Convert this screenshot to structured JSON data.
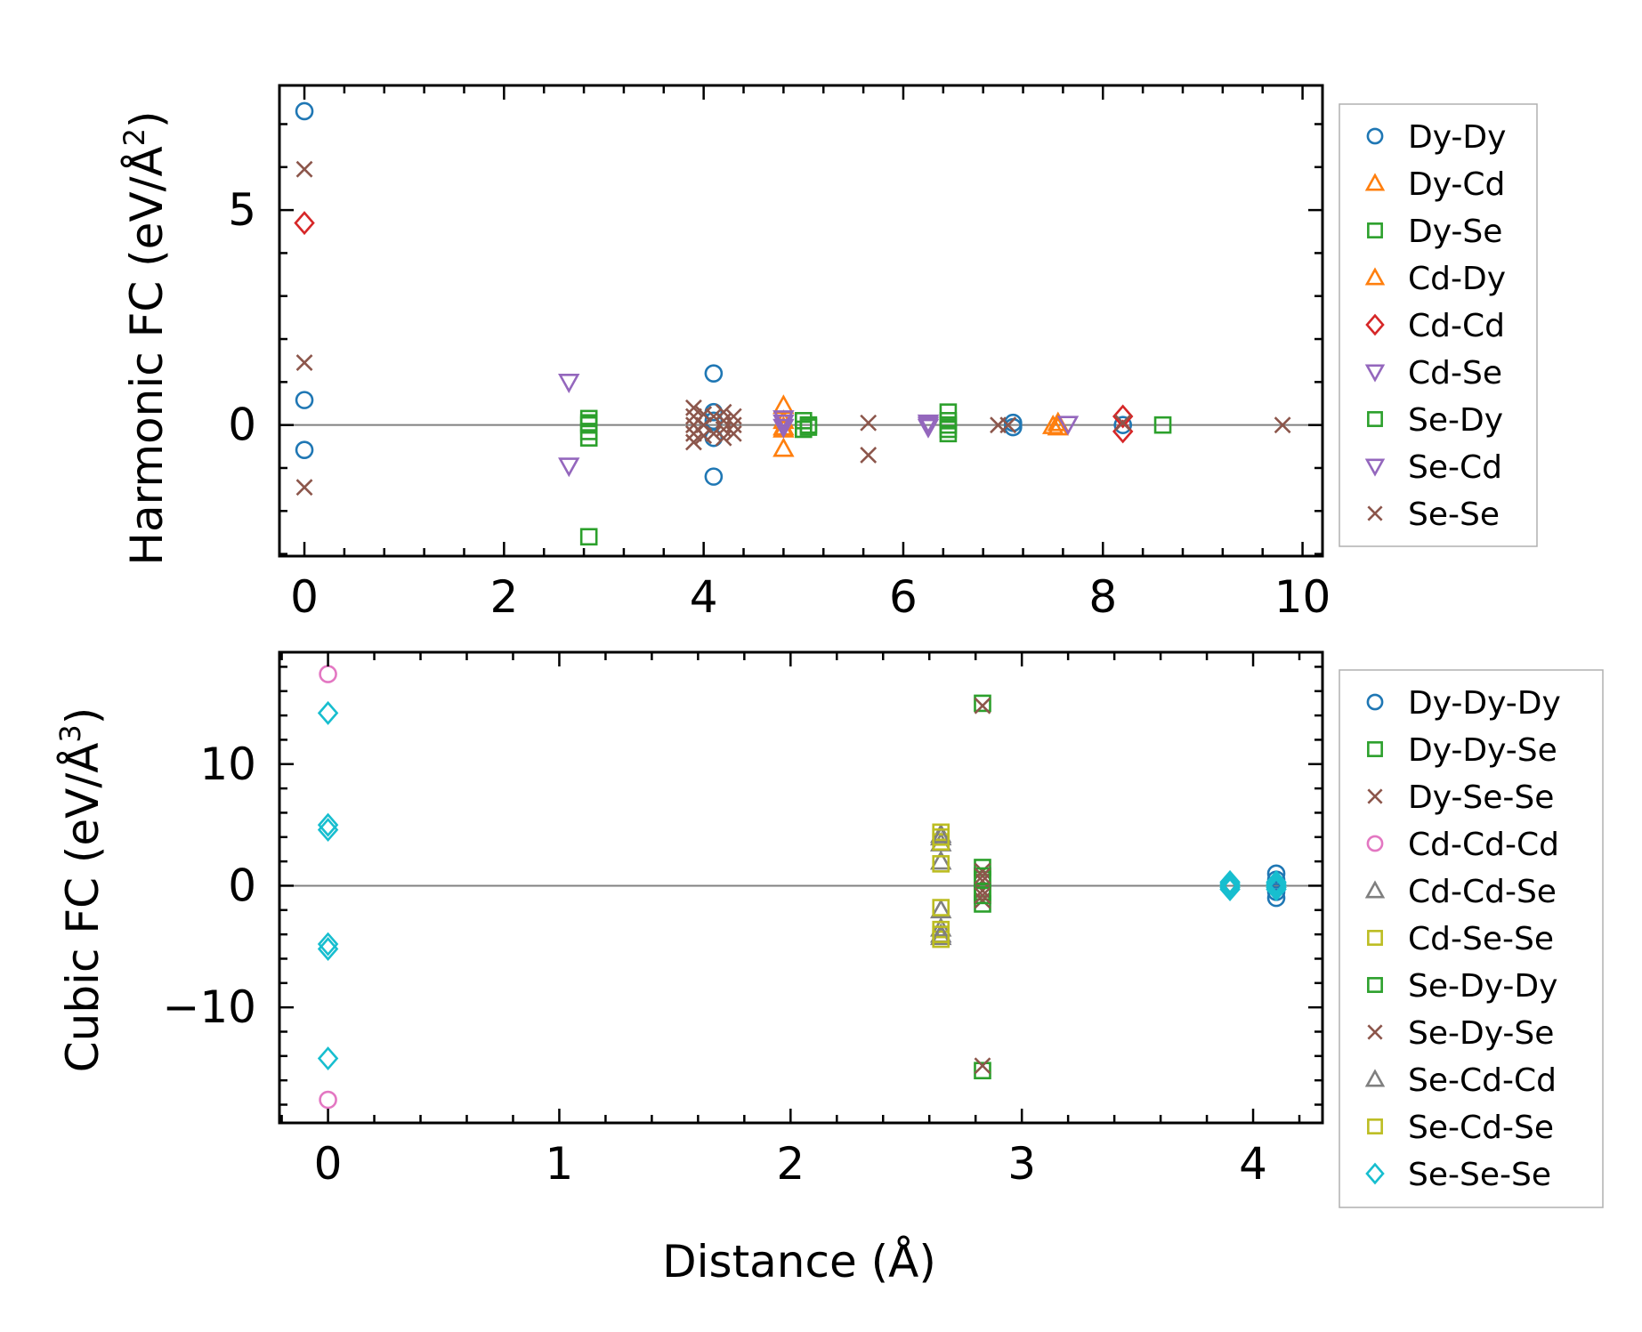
{
  "chart_data": [
    {
      "type": "scatter",
      "ylabel_main": "Harmonic FC (eV/Å",
      "ylabel_sup": "2",
      "ylabel_close": ")",
      "xlabel": "",
      "xlim": [
        -0.25,
        10.2
      ],
      "ylim": [
        -3.05,
        7.9
      ],
      "xticks": [
        0,
        2,
        4,
        6,
        8,
        10
      ],
      "xtick_labels": [
        "0",
        "2",
        "4",
        "6",
        "8",
        "10"
      ],
      "yticks": [
        0,
        5
      ],
      "ytick_labels": [
        "0",
        "5"
      ],
      "legend": [
        "Dy-Dy",
        "Dy-Cd",
        "Dy-Se",
        "Cd-Dy",
        "Cd-Cd",
        "Cd-Se",
        "Se-Dy",
        "Se-Cd",
        "Se-Se"
      ],
      "series": [
        {
          "name": "Dy-Dy",
          "marker": "circle",
          "color": "#1f77b4",
          "points": [
            [
              0,
              7.3
            ],
            [
              0,
              0.58
            ],
            [
              0,
              -0.58
            ],
            [
              4.1,
              1.2
            ],
            [
              4.1,
              -1.2
            ],
            [
              4.1,
              0.3
            ],
            [
              4.1,
              -0.3
            ],
            [
              4.1,
              0.1
            ],
            [
              7.1,
              0.05
            ],
            [
              7.1,
              -0.05
            ],
            [
              8.2,
              0
            ]
          ]
        },
        {
          "name": "Dy-Cd",
          "marker": "triangle-up",
          "color": "#ff7f0e",
          "points": [
            [
              4.8,
              0.45
            ],
            [
              4.8,
              -0.55
            ],
            [
              4.8,
              0.1
            ],
            [
              4.8,
              -0.1
            ],
            [
              7.55,
              0.05
            ],
            [
              7.55,
              -0.05
            ]
          ]
        },
        {
          "name": "Dy-Se",
          "marker": "square",
          "color": "#2ca02c",
          "points": [
            [
              2.85,
              -2.6
            ],
            [
              2.85,
              0.15
            ],
            [
              2.85,
              0
            ],
            [
              2.85,
              -0.15
            ],
            [
              2.85,
              -0.3
            ],
            [
              5.0,
              0.1
            ],
            [
              5.0,
              -0.1
            ],
            [
              5.05,
              0
            ],
            [
              6.45,
              0.3
            ],
            [
              6.45,
              0.1
            ],
            [
              6.45,
              -0.1
            ],
            [
              6.45,
              -0.2
            ],
            [
              8.6,
              0
            ]
          ]
        },
        {
          "name": "Cd-Dy",
          "marker": "triangle-up",
          "color": "#ff7f0e",
          "points": [
            [
              4.8,
              -0.05
            ],
            [
              7.5,
              -0.02
            ]
          ]
        },
        {
          "name": "Cd-Cd",
          "marker": "diamond",
          "color": "#d62728",
          "points": [
            [
              0,
              4.7
            ],
            [
              8.2,
              0.2
            ],
            [
              8.2,
              -0.15
            ]
          ]
        },
        {
          "name": "Cd-Se",
          "marker": "triangle-down",
          "color": "#9467bd",
          "points": [
            [
              2.65,
              1.0
            ],
            [
              2.65,
              -0.95
            ],
            [
              4.8,
              0.15
            ],
            [
              4.8,
              -0.05
            ],
            [
              6.25,
              0.05
            ],
            [
              6.25,
              -0.05
            ]
          ]
        },
        {
          "name": "Se-Dy",
          "marker": "square",
          "color": "#2ca02c",
          "points": [
            [
              2.85,
              0.05
            ],
            [
              5.05,
              -0.05
            ],
            [
              6.45,
              0
            ]
          ]
        },
        {
          "name": "Se-Cd",
          "marker": "triangle-down",
          "color": "#9467bd",
          "points": [
            [
              4.8,
              0.05
            ],
            [
              6.25,
              0
            ],
            [
              7.65,
              0.02
            ]
          ]
        },
        {
          "name": "Se-Se",
          "marker": "x",
          "color": "#8c564b",
          "points": [
            [
              0,
              5.95
            ],
            [
              0,
              1.45
            ],
            [
              0,
              -1.45
            ],
            [
              3.9,
              0.4
            ],
            [
              3.9,
              0.2
            ],
            [
              3.9,
              0
            ],
            [
              3.9,
              -0.2
            ],
            [
              3.9,
              -0.4
            ],
            [
              4.0,
              0.25
            ],
            [
              4.0,
              0
            ],
            [
              4.0,
              -0.25
            ],
            [
              4.1,
              0.2
            ],
            [
              4.1,
              -0.2
            ],
            [
              4.2,
              0.3
            ],
            [
              4.2,
              0.1
            ],
            [
              4.2,
              -0.1
            ],
            [
              4.2,
              -0.3
            ],
            [
              4.3,
              0.2
            ],
            [
              4.3,
              0
            ],
            [
              4.3,
              -0.2
            ],
            [
              5.65,
              0.05
            ],
            [
              5.65,
              -0.7
            ],
            [
              6.95,
              0
            ],
            [
              7.05,
              0
            ],
            [
              8.2,
              0.05
            ],
            [
              9.8,
              0
            ]
          ]
        }
      ]
    },
    {
      "type": "scatter",
      "ylabel_main": "Cubic FC (eV/Å",
      "ylabel_sup": "3",
      "ylabel_close": ")",
      "xlabel": "Distance (Å)",
      "xlim": [
        -0.21,
        4.3
      ],
      "ylim": [
        -19.5,
        19.2
      ],
      "xticks": [
        0,
        1,
        2,
        3,
        4
      ],
      "xtick_labels": [
        "0",
        "1",
        "2",
        "3",
        "4"
      ],
      "yticks": [
        -10,
        0,
        10
      ],
      "ytick_labels": [
        "−10",
        "0",
        "10"
      ],
      "legend": [
        "Dy-Dy-Dy",
        "Dy-Dy-Se",
        "Dy-Se-Se",
        "Cd-Cd-Cd",
        "Cd-Cd-Se",
        "Cd-Se-Se",
        "Se-Dy-Dy",
        "Se-Dy-Se",
        "Se-Cd-Cd",
        "Se-Cd-Se",
        "Se-Se-Se"
      ],
      "series": [
        {
          "name": "Dy-Dy-Dy",
          "marker": "circle",
          "color": "#1f77b4",
          "points": [
            [
              4.1,
              1.0
            ],
            [
              4.1,
              0.5
            ],
            [
              4.1,
              0
            ],
            [
              4.1,
              -0.5
            ],
            [
              4.1,
              -1.0
            ]
          ]
        },
        {
          "name": "Dy-Dy-Se",
          "marker": "square",
          "color": "#2ca02c",
          "points": [
            [
              2.83,
              15.0
            ],
            [
              2.83,
              -15.2
            ],
            [
              2.83,
              1.5
            ],
            [
              2.83,
              0.5
            ],
            [
              2.83,
              -0.5
            ],
            [
              2.83,
              -1.5
            ]
          ]
        },
        {
          "name": "Dy-Se-Se",
          "marker": "x",
          "color": "#8c564b",
          "points": [
            [
              2.83,
              14.8
            ],
            [
              2.83,
              -14.8
            ],
            [
              2.83,
              1.2
            ],
            [
              2.83,
              0.4
            ],
            [
              2.83,
              -0.4
            ],
            [
              2.83,
              -1.2
            ]
          ]
        },
        {
          "name": "Cd-Cd-Cd",
          "marker": "circle",
          "color": "#e377c2",
          "points": [
            [
              0,
              17.4
            ],
            [
              0,
              -17.6
            ]
          ]
        },
        {
          "name": "Cd-Cd-Se",
          "marker": "triangle-up",
          "color": "#7f7f7f",
          "points": [
            [
              2.65,
              4.2
            ],
            [
              2.65,
              3.5
            ],
            [
              2.65,
              -3.5
            ],
            [
              2.65,
              -4.2
            ],
            [
              2.65,
              2.0
            ],
            [
              2.65,
              -2.0
            ]
          ]
        },
        {
          "name": "Cd-Se-Se",
          "marker": "square",
          "color": "#bcbd22",
          "points": [
            [
              2.65,
              4.4
            ],
            [
              2.65,
              3.6
            ],
            [
              2.65,
              1.8
            ],
            [
              2.65,
              -1.8
            ],
            [
              2.65,
              -3.6
            ],
            [
              2.65,
              -4.4
            ]
          ]
        },
        {
          "name": "Se-Dy-Dy",
          "marker": "square",
          "color": "#2ca02c",
          "points": [
            [
              2.83,
              0.8
            ],
            [
              2.83,
              -0.8
            ]
          ]
        },
        {
          "name": "Se-Dy-Se",
          "marker": "x",
          "color": "#8c564b",
          "points": [
            [
              2.83,
              0.8
            ],
            [
              2.83,
              -0.8
            ]
          ]
        },
        {
          "name": "Se-Cd-Cd",
          "marker": "triangle-up",
          "color": "#7f7f7f",
          "points": [
            [
              2.65,
              4.0
            ],
            [
              2.65,
              -4.0
            ]
          ]
        },
        {
          "name": "Se-Cd-Se",
          "marker": "square",
          "color": "#bcbd22",
          "points": [
            [
              2.65,
              4.0
            ],
            [
              2.65,
              -4.0
            ]
          ]
        },
        {
          "name": "Se-Se-Se",
          "marker": "diamond",
          "color": "#17becf",
          "points": [
            [
              0,
              14.2
            ],
            [
              0,
              5.0
            ],
            [
              0,
              4.6
            ],
            [
              0,
              -4.8
            ],
            [
              0,
              -5.2
            ],
            [
              0,
              -14.2
            ],
            [
              3.9,
              0.3
            ],
            [
              3.9,
              0
            ],
            [
              3.9,
              -0.3
            ],
            [
              3.9,
              0.15
            ],
            [
              3.9,
              -0.15
            ],
            [
              4.1,
              0.3
            ],
            [
              4.1,
              0
            ],
            [
              4.1,
              -0.3
            ],
            [
              4.1,
              0.15
            ],
            [
              4.1,
              -0.15
            ]
          ]
        }
      ]
    }
  ]
}
